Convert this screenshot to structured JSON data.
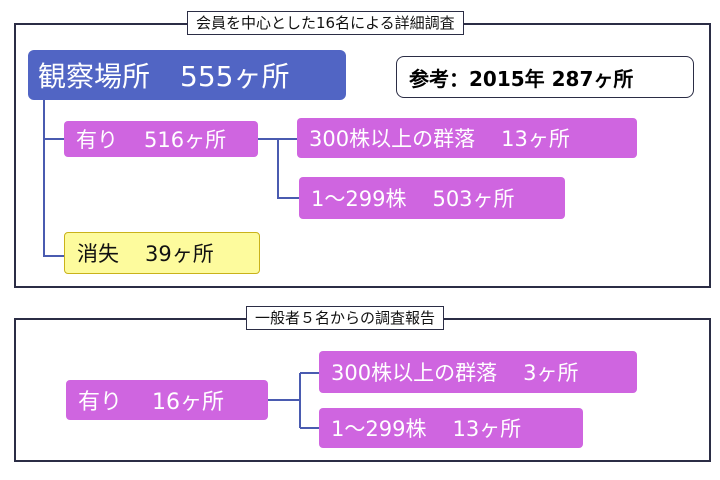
{
  "section1": {
    "title": "会員を中心とした16名による詳細調査",
    "observed": {
      "label": "観察場所",
      "count": "555ヶ所"
    },
    "reference": {
      "label": "参考：2015年 287ヶ所"
    },
    "present": {
      "label": "有り",
      "count": "516ヶ所"
    },
    "colony_300": {
      "label": "300株以上の群落",
      "count": "13ヶ所"
    },
    "range_1_299": {
      "label": "1〜299株",
      "count": "503ヶ所"
    },
    "lost": {
      "label": "消失",
      "count": "39ヶ所"
    }
  },
  "section2": {
    "title": "一般者５名からの調査報告",
    "present": {
      "label": "有り",
      "count": "16ヶ所"
    },
    "colony_300": {
      "label": "300株以上の群落",
      "count": "3ヶ所"
    },
    "range_1_299": {
      "label": "1〜299株",
      "count": "13ヶ所"
    }
  },
  "colors": {
    "purple": "#cf65e0",
    "blue": "#5165c4",
    "yellow": "#fdfb9d",
    "line": "#4a5bb0",
    "frame": "#2b2d45"
  }
}
